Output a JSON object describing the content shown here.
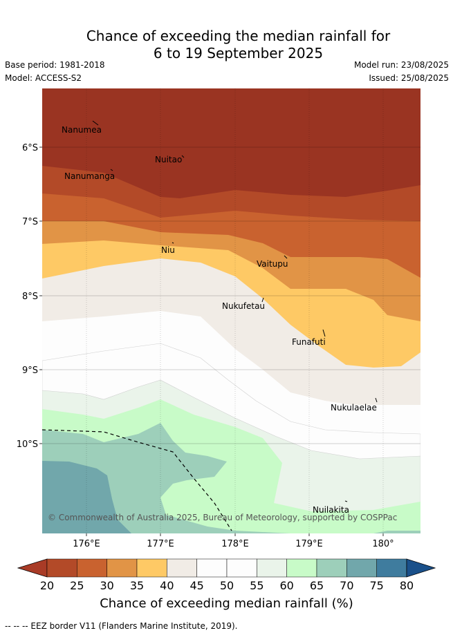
{
  "title": {
    "line1": "Chance of exceeding the median rainfall for",
    "line2": "6 to 19 September 2025"
  },
  "meta": {
    "base_period": "Base period: 1981-2018",
    "model": "Model: ACCESS-S2",
    "model_run": "Model run: 23/08/2025",
    "issued": "Issued: 25/08/2025"
  },
  "map": {
    "y_ticks": [
      "6°S",
      "7°S",
      "8°S",
      "9°S",
      "10°S"
    ],
    "x_ticks": [
      "176°E",
      "177°E",
      "178°E",
      "179°E",
      "180°"
    ],
    "places": [
      "Nanumea",
      "Nuitao",
      "Nanumanga",
      "Niu",
      "Vaitupu",
      "Nukufetau",
      "Funafuti",
      "Nukulaelae",
      "Nuilakita"
    ],
    "copyright": "© Commonwealth of Australia 2025, Bureau of Meteorology, supported by COSPPac"
  },
  "colorbar": {
    "ticks": [
      "20",
      "25",
      "30",
      "35",
      "40",
      "45",
      "50",
      "55",
      "60",
      "65",
      "70",
      "75",
      "80"
    ],
    "colors": [
      "#a93b26",
      "#b34a28",
      "#c9622f",
      "#e19446",
      "#fec965",
      "#f1ece6",
      "#fdfdfd",
      "#fdfdfd",
      "#eaf4ea",
      "#c8fbc8",
      "#9dcfba",
      "#71a7ab",
      "#3f7c9e"
    ],
    "low_color": "#a93b26",
    "high_color": "#1a508a",
    "label": "Chance of exceeding median rainfall (%)"
  },
  "footer": "--  --  -- EEZ border V11 (Flanders Marine Institute, 2019)."
}
